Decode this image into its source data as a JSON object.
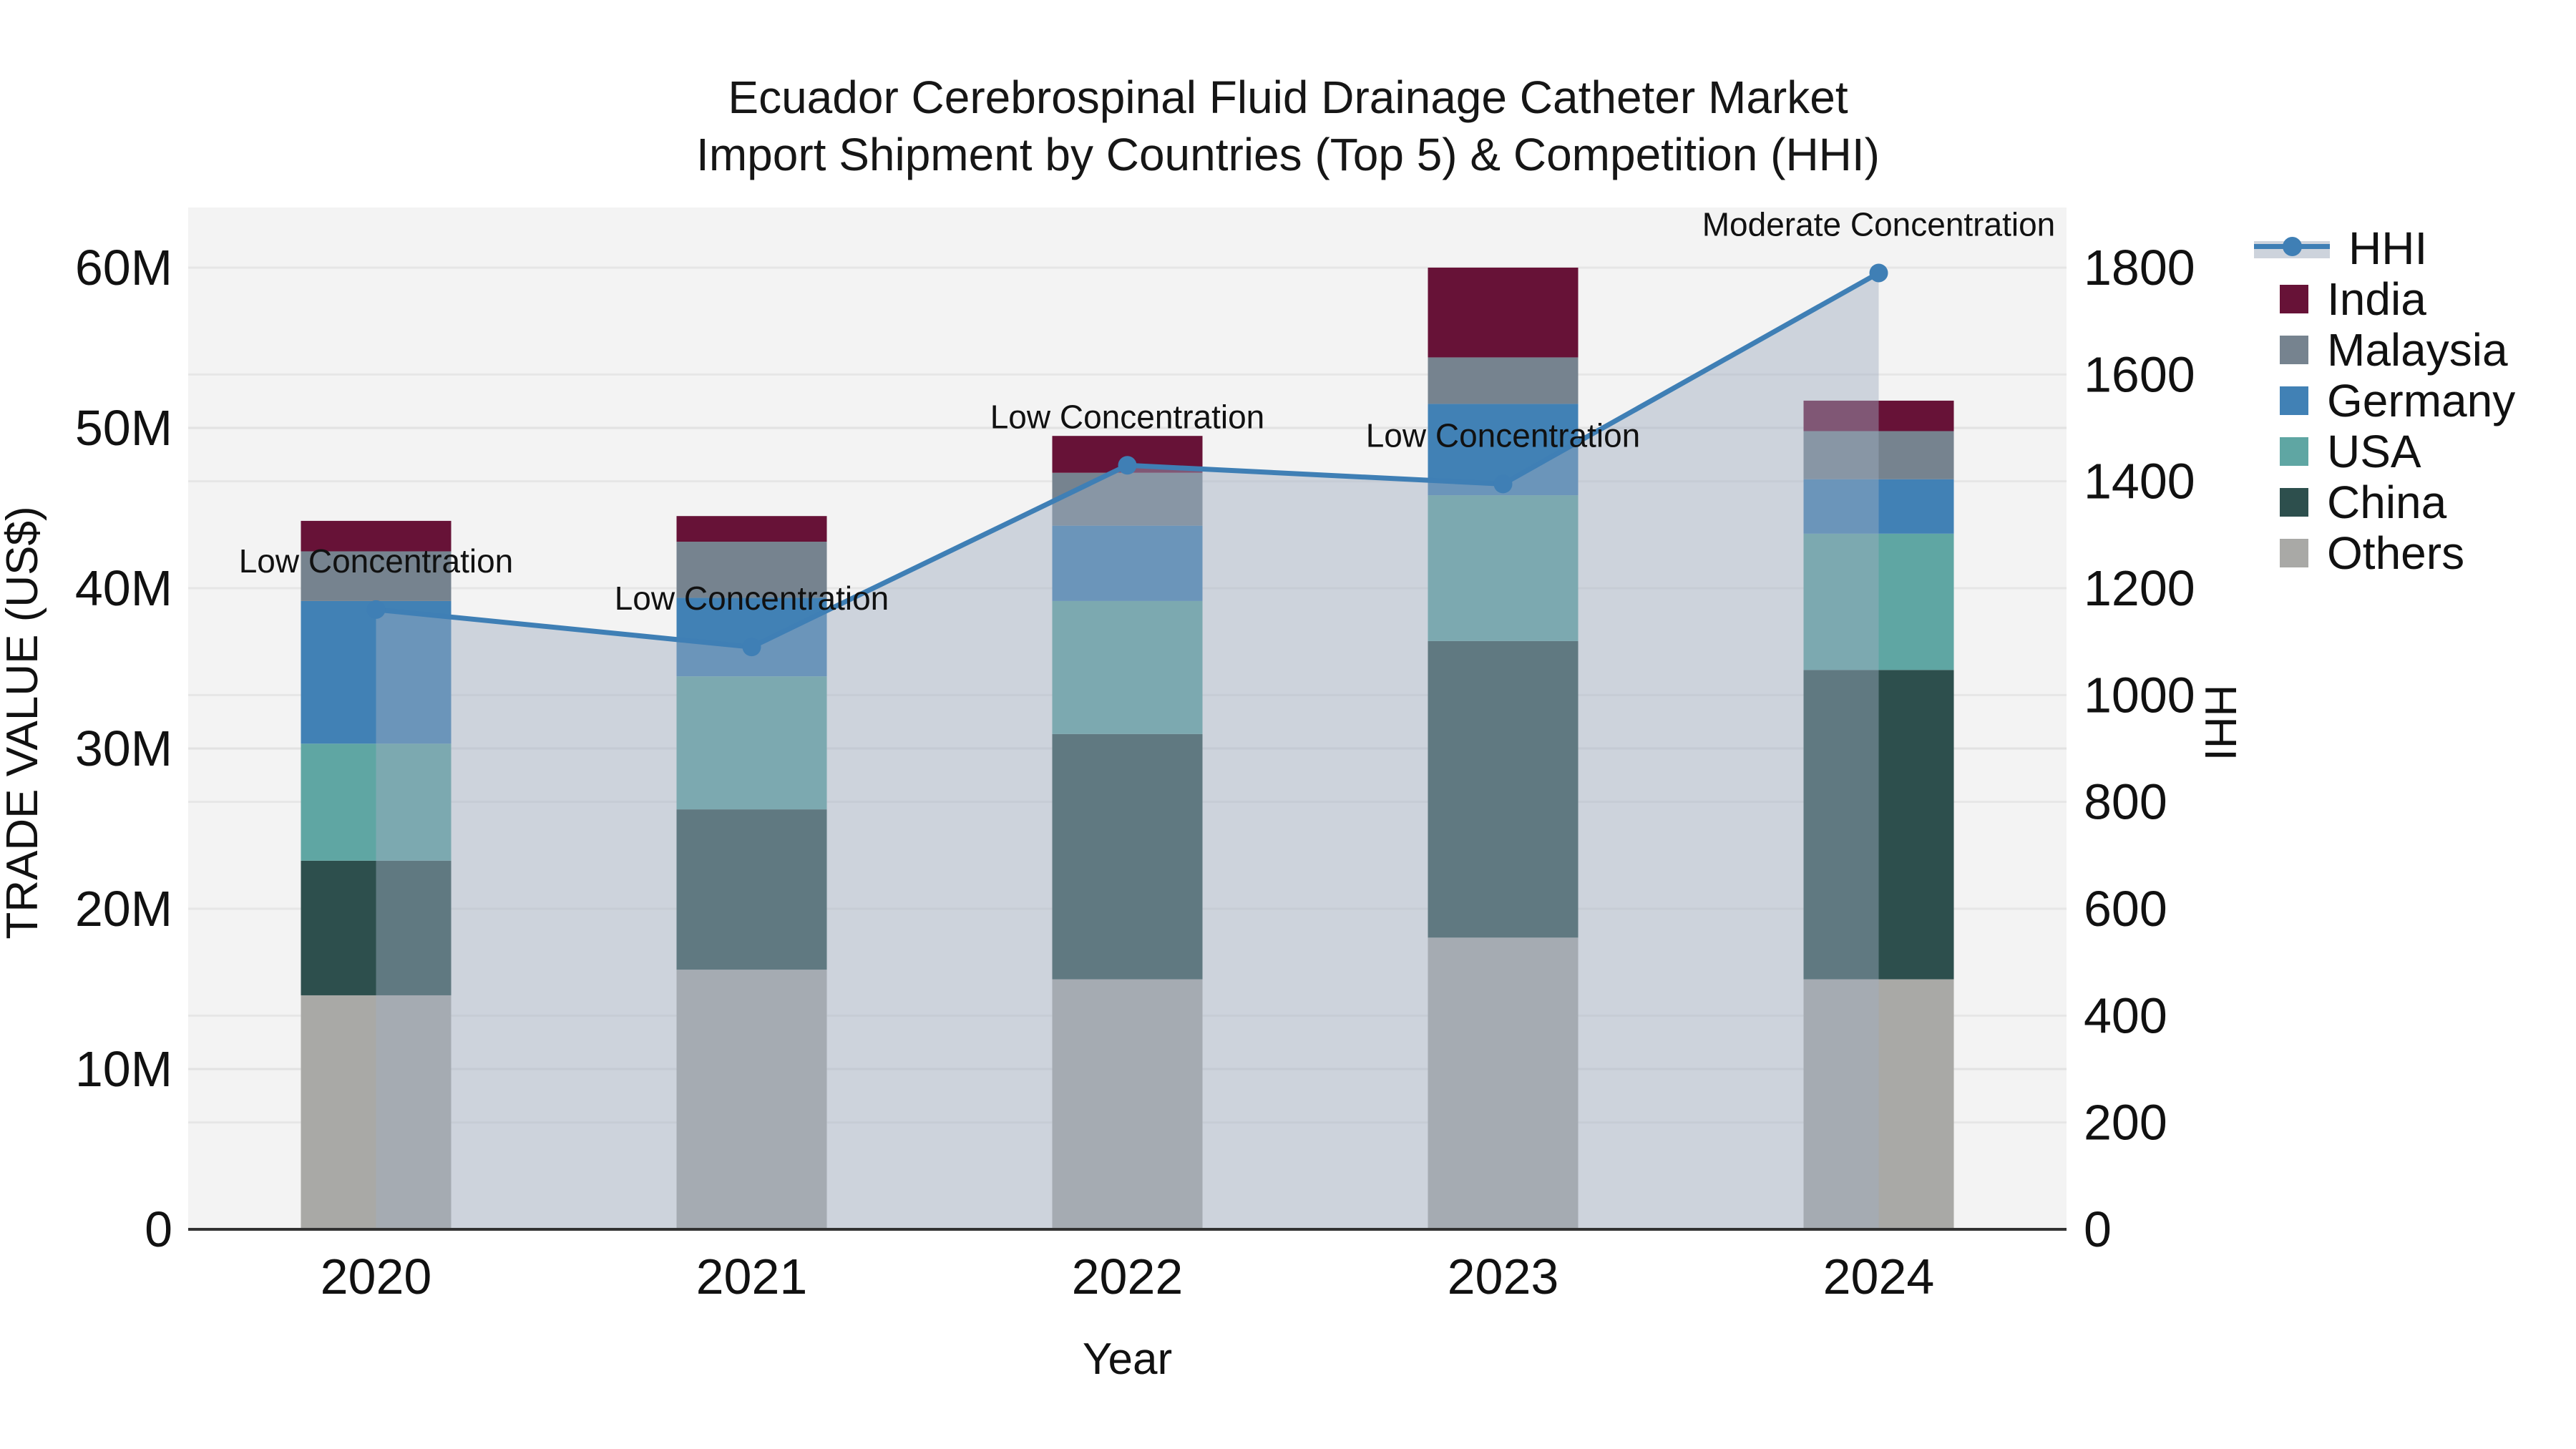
{
  "title": {
    "line1": "Ecuador Cerebrospinal Fluid Drainage Catheter Market",
    "line2": "Import Shipment by Countries (Top 5) & Competition (HHI)"
  },
  "axes": {
    "x": {
      "title": "Year",
      "ticks": [
        "2020",
        "2021",
        "2022",
        "2023",
        "2024"
      ]
    },
    "y_left": {
      "title": "TRADE VALUE (US$)",
      "ticks": [
        "0",
        "10M",
        "20M",
        "30M",
        "40M",
        "50M",
        "60M"
      ],
      "range_millions": [
        0,
        60
      ]
    },
    "y_right": {
      "title": "HHI",
      "ticks": [
        "0",
        "200",
        "400",
        "600",
        "800",
        "1000",
        "1200",
        "1400",
        "1600",
        "1800"
      ],
      "range": [
        0,
        1800
      ]
    }
  },
  "legend": {
    "items": [
      {
        "label": "HHI",
        "type": "line",
        "color": "#3f7fb5"
      },
      {
        "label": "India",
        "type": "swatch",
        "color": "#671237"
      },
      {
        "label": "Malaysia",
        "type": "swatch",
        "color": "#76838f"
      },
      {
        "label": "Germany",
        "type": "swatch",
        "color": "#4181b5"
      },
      {
        "label": "USA",
        "type": "swatch",
        "color": "#5fa6a3"
      },
      {
        "label": "China",
        "type": "swatch",
        "color": "#2d4f4d"
      },
      {
        "label": "Others",
        "type": "swatch",
        "color": "#a9a9a6"
      }
    ]
  },
  "chart_data": {
    "type": "bar+line",
    "categories": [
      "2020",
      "2021",
      "2022",
      "2023",
      "2024"
    ],
    "bar_unit": "US$ millions (left axis, TRADE VALUE)",
    "stack_order_bottom_to_top": [
      "Others",
      "China",
      "USA",
      "Germany",
      "Malaysia",
      "India"
    ],
    "series": [
      {
        "name": "Others",
        "color": "#a9a9a6",
        "values": [
          14.6,
          16.2,
          15.6,
          18.2,
          15.6
        ]
      },
      {
        "name": "China",
        "color": "#2d4f4d",
        "values": [
          8.4,
          10.0,
          15.3,
          18.5,
          19.3
        ]
      },
      {
        "name": "USA",
        "color": "#5fa6a3",
        "values": [
          7.3,
          8.3,
          8.3,
          9.1,
          8.5
        ]
      },
      {
        "name": "Germany",
        "color": "#4181b5",
        "values": [
          8.9,
          4.9,
          4.7,
          5.7,
          3.4
        ]
      },
      {
        "name": "Malaysia",
        "color": "#76838f",
        "values": [
          3.1,
          3.5,
          3.3,
          2.9,
          3.0
        ]
      },
      {
        "name": "India",
        "color": "#671237",
        "values": [
          1.9,
          1.6,
          2.3,
          5.6,
          1.9
        ]
      }
    ],
    "bar_totals": [
      44.2,
      44.5,
      49.5,
      60.0,
      51.7
    ],
    "line_series": {
      "name": "HHI",
      "axis": "right",
      "color": "#3f7fb5",
      "fill_color": "rgba(160,174,194,0.45)",
      "values": [
        1160,
        1090,
        1430,
        1395,
        1790
      ]
    },
    "annotations": [
      {
        "x": "2020",
        "text": "Low Concentration"
      },
      {
        "x": "2021",
        "text": "Low Concentration"
      },
      {
        "x": "2022",
        "text": "Low Concentration"
      },
      {
        "x": "2023",
        "text": "Low Concentration"
      },
      {
        "x": "2024",
        "text": "Moderate Concentration"
      }
    ],
    "layout_hints": {
      "plot_background": "#f3f3f3",
      "gridlines": "both-axes",
      "legend_position": "right-top"
    }
  }
}
